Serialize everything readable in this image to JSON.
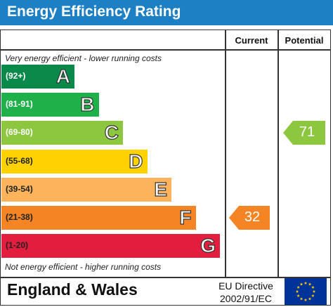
{
  "header": {
    "title": "Energy Efficiency Rating"
  },
  "columns": {
    "current": "Current",
    "potential": "Potential"
  },
  "captions": {
    "top": "Very energy efficient - lower running costs",
    "bottom": "Not energy efficient - higher running costs"
  },
  "bands": [
    {
      "letter": "A",
      "range": "(92+)",
      "color": "#098a4a"
    },
    {
      "letter": "B",
      "range": "(81-91)",
      "color": "#1fb04a"
    },
    {
      "letter": "C",
      "range": "(69-80)",
      "color": "#8dc63f"
    },
    {
      "letter": "D",
      "range": "(55-68)",
      "color": "#ffd200"
    },
    {
      "letter": "E",
      "range": "(39-54)",
      "color": "#fcb35b"
    },
    {
      "letter": "F",
      "range": "(21-38)",
      "color": "#f48424"
    },
    {
      "letter": "G",
      "range": "(1-20)",
      "color": "#e31d3d"
    }
  ],
  "ratings": {
    "current": {
      "value": "32",
      "band": "F",
      "color": "#f48424"
    },
    "potential": {
      "value": "71",
      "band": "C",
      "color": "#8dc63f"
    }
  },
  "footer": {
    "country": "England & Wales",
    "directive_line1": "EU Directive",
    "directive_line2": "2002/91/EC"
  }
}
